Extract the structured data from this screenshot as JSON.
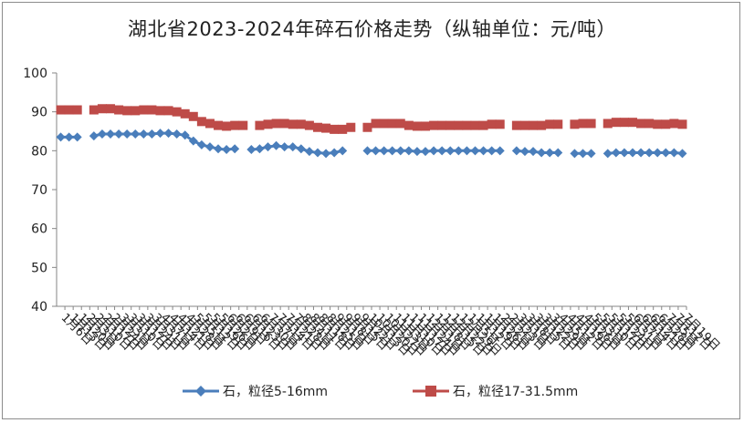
{
  "title": "湖北省2023-2024年碎石价格走势（纵轴单位：元/吨）",
  "chart_data": {
    "type": "line",
    "title": "湖北省2023-2024年碎石价格走势（纵轴单位：元/吨）",
    "xlabel": "",
    "ylabel": "",
    "ylim": [
      40,
      100
    ],
    "yticks": [
      40,
      50,
      60,
      70,
      80,
      90,
      100
    ],
    "grid": false,
    "legend_position": "bottom",
    "categories": [
      "1月6日",
      "1月13日",
      "1月20日",
      "2月3日",
      "2月10日",
      "2月17日",
      "2月24日",
      "3月3日",
      "3月10日",
      "3月17日",
      "3月24日",
      "3月31日",
      "4月7日",
      "4月14日",
      "4月21日",
      "4月28日",
      "5月5日",
      "5月12日",
      "5月19日",
      "5月26日",
      "6月2日",
      "6月9日",
      "6月16日",
      "6月23日",
      "6月30日",
      "7月7日",
      "7月14日",
      "7月21日",
      "7月28日",
      "8月4日",
      "8月11日",
      "8月18日",
      "8月25日",
      "9月1日",
      "9月8日",
      "9月15日",
      "9月22日",
      "10月13日",
      "10月20日",
      "10月27日",
      "11月3日",
      "11月10日",
      "11月17日",
      "11月24日",
      "12月1日",
      "12月8日",
      "12月15日",
      "12月22日",
      "12月29日",
      "1月5日",
      "1月12日",
      "1月19日",
      "1月26日",
      "2月2日",
      "2月23日",
      "3月1日",
      "3月8日",
      "3月15日",
      "3月22日",
      "3月29日",
      "4月5日",
      "4月12日",
      "4月19日",
      "4月26日",
      "5月3日",
      "5月10日",
      "5月17日",
      "5月24日",
      "5月31日",
      "6月7日",
      "6月14日",
      "6月21日",
      "6月28日",
      "7月5日",
      "7月12日",
      "7月19日"
    ],
    "series": [
      {
        "name": "石，粒径5-16mm",
        "color": "#4a7ebb",
        "marker": "diamond",
        "values": [
          83.5,
          83.5,
          83.5,
          null,
          83.8,
          84.3,
          84.3,
          84.3,
          84.3,
          84.3,
          84.3,
          84.3,
          84.5,
          84.5,
          84.3,
          84.0,
          82.5,
          81.5,
          81.0,
          80.5,
          80.3,
          80.5,
          null,
          80.3,
          80.5,
          81.0,
          81.3,
          81.0,
          81.0,
          80.5,
          79.8,
          79.5,
          79.3,
          79.5,
          80.0,
          null,
          null,
          80.0,
          80.0,
          80.0,
          80.0,
          80.0,
          80.0,
          79.8,
          79.8,
          80.0,
          80.0,
          80.0,
          80.0,
          80.0,
          80.0,
          80.0,
          80.0,
          80.0,
          null,
          80.0,
          79.8,
          79.8,
          79.5,
          79.5,
          79.5,
          null,
          79.3,
          79.3,
          79.3,
          null,
          79.3,
          79.5,
          79.5,
          79.5,
          79.5,
          79.5,
          79.5,
          79.5,
          79.5,
          79.3
        ]
      },
      {
        "name": "石，粒径17-31.5mm",
        "color": "#be4b48",
        "marker": "square",
        "values": [
          90.5,
          90.5,
          90.5,
          null,
          90.5,
          90.8,
          90.8,
          90.5,
          90.3,
          90.3,
          90.5,
          90.5,
          90.3,
          90.3,
          90.0,
          89.5,
          88.8,
          87.5,
          87.0,
          86.5,
          86.3,
          86.5,
          86.5,
          null,
          86.5,
          86.8,
          87.0,
          87.0,
          86.8,
          86.8,
          86.5,
          86.0,
          85.8,
          85.5,
          85.5,
          86.0,
          null,
          86.0,
          87.0,
          87.0,
          87.0,
          87.0,
          86.5,
          86.3,
          86.3,
          86.5,
          86.5,
          86.5,
          86.5,
          86.5,
          86.5,
          86.5,
          86.8,
          86.8,
          null,
          86.5,
          86.5,
          86.5,
          86.5,
          86.8,
          86.8,
          null,
          86.8,
          87.0,
          87.0,
          null,
          87.0,
          87.3,
          87.3,
          87.3,
          87.0,
          87.0,
          86.8,
          86.8,
          87.0,
          86.8
        ]
      }
    ]
  }
}
